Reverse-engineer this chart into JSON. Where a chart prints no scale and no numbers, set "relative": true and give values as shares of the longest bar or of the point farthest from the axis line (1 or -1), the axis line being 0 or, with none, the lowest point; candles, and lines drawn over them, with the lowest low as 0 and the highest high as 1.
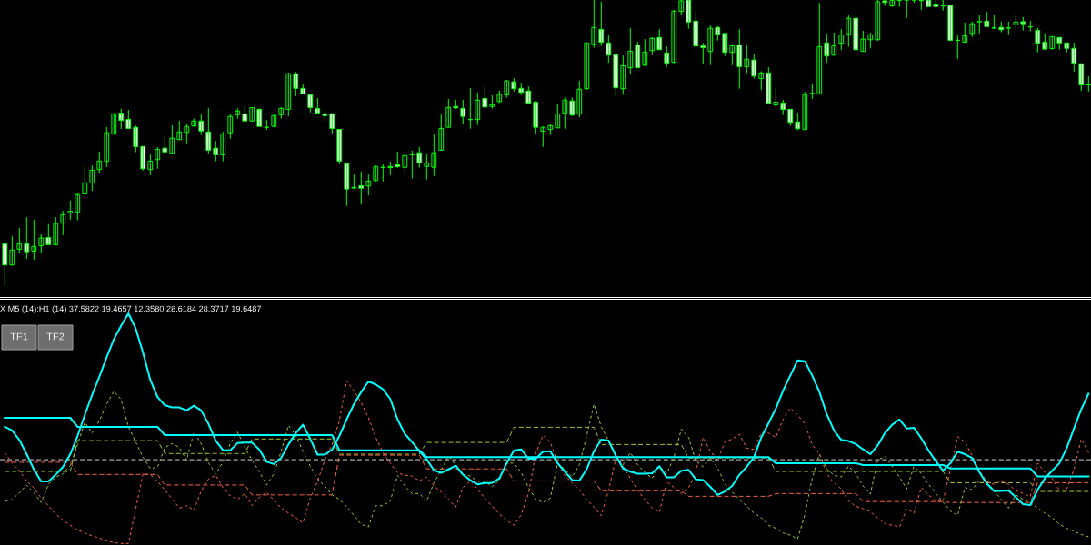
{
  "chart_data": [
    {
      "type": "candlestick",
      "relative": true,
      "color": "#00ff00",
      "categories": [
        null,
        null,
        null,
        null,
        null,
        null,
        null,
        null,
        null,
        null,
        null,
        null,
        null,
        null,
        null,
        null,
        null,
        null,
        null,
        null,
        null,
        null,
        null,
        null,
        null,
        null,
        null,
        null,
        null,
        null,
        null,
        null,
        null,
        null,
        null,
        null,
        null,
        null,
        null,
        null,
        null,
        null,
        null,
        null,
        null,
        null,
        null,
        null,
        null,
        null,
        null,
        null,
        null,
        null,
        null,
        null,
        null,
        null,
        null,
        null,
        null,
        null,
        null,
        null,
        null,
        null,
        null,
        null,
        null,
        null,
        null,
        null,
        null,
        null,
        null,
        null,
        null,
        null,
        null,
        null,
        null,
        null,
        null,
        null,
        null,
        null,
        null,
        null,
        null,
        null,
        null,
        null,
        null,
        null,
        null,
        null,
        null,
        null,
        null,
        null,
        null,
        null,
        null,
        null,
        null,
        null,
        null,
        null,
        null,
        null,
        null,
        null,
        null,
        null,
        null,
        null,
        null,
        null,
        null,
        null,
        null,
        null,
        null,
        null,
        null,
        null,
        null,
        null,
        null,
        null,
        null,
        null,
        null,
        null,
        null,
        null,
        null,
        null,
        null,
        null,
        null,
        null,
        null,
        null,
        null,
        null,
        null,
        null,
        null,
        null
      ],
      "ohlc": [
        [
          0.148,
          0.156,
          0,
          0.074
        ],
        [
          0.074,
          0.175,
          0.074,
          0.126
        ],
        [
          0.129,
          0.203,
          0.114,
          0.148
        ],
        [
          0.148,
          0.241,
          0.095,
          0.12
        ],
        [
          0.122,
          0.232,
          0.092,
          0.139
        ],
        [
          0.141,
          0.181,
          0.114,
          0.168
        ],
        [
          0.17,
          0.216,
          0.145,
          0.145
        ],
        [
          0.144,
          0.241,
          0.144,
          0.219
        ],
        [
          0.22,
          0.263,
          0.178,
          0.25
        ],
        [
          0.256,
          0.298,
          0.232,
          0.262
        ],
        [
          0.258,
          0.326,
          0.23,
          0.32
        ],
        [
          0.322,
          0.416,
          0.322,
          0.361
        ],
        [
          0.36,
          0.422,
          0.333,
          0.405
        ],
        [
          0.407,
          0.47,
          0.395,
          0.437
        ],
        [
          0.436,
          0.556,
          0.416,
          0.536
        ],
        [
          0.531,
          0.605,
          0.531,
          0.602
        ],
        [
          0.605,
          0.619,
          0.549,
          0.579
        ],
        [
          0.583,
          0.616,
          0.551,
          0.551
        ],
        [
          0.555,
          0.561,
          0.468,
          0.487
        ],
        [
          0.488,
          0.488,
          0.404,
          0.41
        ],
        [
          0.407,
          0.463,
          0.388,
          0.437
        ],
        [
          0.442,
          0.486,
          0.41,
          0.478
        ],
        [
          0.482,
          0.527,
          0.458,
          0.469
        ],
        [
          0.464,
          0.562,
          0.464,
          0.517
        ],
        [
          0.512,
          0.578,
          0.512,
          0.539
        ],
        [
          0.537,
          0.565,
          0.499,
          0.558
        ],
        [
          0.56,
          0.586,
          0.556,
          0.577
        ],
        [
          0.577,
          0.603,
          0.528,
          0.542
        ],
        [
          0.539,
          0.622,
          0.464,
          0.475
        ],
        [
          0.482,
          0.507,
          0.436,
          0.459
        ],
        [
          0.459,
          0.539,
          0.436,
          0.532
        ],
        [
          0.536,
          0.603,
          0.515,
          0.593
        ],
        [
          0.599,
          0.621,
          0.585,
          0.612
        ],
        [
          0.602,
          0.629,
          0.574,
          0.577
        ],
        [
          0.577,
          0.624,
          0.577,
          0.624
        ],
        [
          0.618,
          0.621,
          0.558,
          0.558
        ],
        [
          0.555,
          0.581,
          0.546,
          0.555
        ],
        [
          0.558,
          0.602,
          0.555,
          0.596
        ],
        [
          0.599,
          0.626,
          0.585,
          0.621
        ],
        [
          0.618,
          0.746,
          0.594,
          0.742
        ],
        [
          0.742,
          0.749,
          0.663,
          0.691
        ],
        [
          0.691,
          0.705,
          0.672,
          0.672
        ],
        [
          0.669,
          0.672,
          0.607,
          0.624
        ],
        [
          0.621,
          0.657,
          0.601,
          0.605
        ],
        [
          0.602,
          0.609,
          0.576,
          0.596
        ],
        [
          0.602,
          0.605,
          0.53,
          0.551
        ],
        [
          0.548,
          0.548,
          0.426,
          0.437
        ],
        [
          0.428,
          0.428,
          0.28,
          0.339
        ],
        [
          0.345,
          0.39,
          0.339,
          0.343
        ],
        [
          0.351,
          0.4,
          0.286,
          0.342
        ],
        [
          0.35,
          0.39,
          0.317,
          0.367
        ],
        [
          0.369,
          0.421,
          0.366,
          0.418
        ],
        [
          0.415,
          0.425,
          0.366,
          0.415
        ],
        [
          0.418,
          0.435,
          0.388,
          0.414
        ],
        [
          0.424,
          0.47,
          0.413,
          0.418
        ],
        [
          0.415,
          0.466,
          0.398,
          0.456
        ],
        [
          0.459,
          0.473,
          0.376,
          0.459
        ],
        [
          0.466,
          0.486,
          0.414,
          0.431
        ],
        [
          0.418,
          0.463,
          0.372,
          0.431
        ],
        [
          0.415,
          0.533,
          0.385,
          0.466
        ],
        [
          0.475,
          0.603,
          0.475,
          0.551
        ],
        [
          0.555,
          0.654,
          0.555,
          0.624
        ],
        [
          0.628,
          0.651,
          0.619,
          0.623
        ],
        [
          0.621,
          0.651,
          0.568,
          0.593
        ],
        [
          0.582,
          0.692,
          0.55,
          0.582
        ],
        [
          0.582,
          0.676,
          0.563,
          0.65
        ],
        [
          0.656,
          0.698,
          0.623,
          0.626
        ],
        [
          0.628,
          0.667,
          0.62,
          0.634
        ],
        [
          0.645,
          0.683,
          0.64,
          0.67
        ],
        [
          0.668,
          0.721,
          0.658,
          0.717
        ],
        [
          0.714,
          0.727,
          0.68,
          0.69
        ],
        [
          0.691,
          0.711,
          0.668,
          0.677
        ],
        [
          0.682,
          0.698,
          0.636,
          0.639
        ],
        [
          0.643,
          0.647,
          0.533,
          0.555
        ],
        [
          0.541,
          0.558,
          0.486,
          0.555
        ],
        [
          0.547,
          0.567,
          0.528,
          0.561
        ],
        [
          0.553,
          0.637,
          0.553,
          0.602
        ],
        [
          0.604,
          0.659,
          0.55,
          0.65
        ],
        [
          0.647,
          0.659,
          0.594,
          0.598
        ],
        [
          0.601,
          0.717,
          0.59,
          0.688
        ],
        [
          0.69,
          0.85,
          0.686,
          0.85
        ],
        [
          0.845,
          1,
          0.833,
          0.904
        ],
        [
          0.897,
          0.994,
          0.839,
          0.852
        ],
        [
          0.85,
          0.876,
          0.781,
          0.807
        ],
        [
          0.809,
          0.812,
          0.663,
          0.693
        ],
        [
          0.69,
          0.806,
          0.669,
          0.77
        ],
        [
          0.763,
          0.902,
          0.741,
          0.821
        ],
        [
          0.843,
          0.854,
          0.763,
          0.763
        ],
        [
          0.772,
          0.863,
          0.769,
          0.818
        ],
        [
          0.823,
          0.87,
          0.807,
          0.866
        ],
        [
          0.869,
          0.898,
          0.826,
          0.826
        ],
        [
          0.815,
          0.838,
          0.766,
          0.779
        ],
        [
          0.782,
          0.965,
          0.779,
          0.961
        ],
        [
          0.96,
          1,
          0.947,
          0.997
        ],
        [
          1,
          1,
          0.899,
          0.923
        ],
        [
          0.926,
          0.961,
          0.836,
          0.839
        ],
        [
          0.84,
          0.85,
          0.776,
          0.833
        ],
        [
          0.82,
          0.914,
          0.772,
          0.901
        ],
        [
          0.904,
          0.908,
          0.858,
          0.88
        ],
        [
          0.883,
          0.886,
          0.804,
          0.817
        ],
        [
          0.817,
          0.847,
          0.772,
          0.84
        ],
        [
          0.843,
          0.898,
          0.69,
          0.767
        ],
        [
          0.767,
          0.841,
          0.744,
          0.793
        ],
        [
          0.79,
          0.81,
          0.725,
          0.734
        ],
        [
          0.725,
          0.751,
          0.686,
          0.745
        ],
        [
          0.745,
          0.765,
          0.639,
          0.639
        ],
        [
          0.633,
          0.694,
          0.626,
          0.643
        ],
        [
          0.64,
          0.651,
          0.598,
          0.617
        ],
        [
          0.618,
          0.618,
          0.56,
          0.572
        ],
        [
          0.574,
          0.606,
          0.545,
          0.55
        ],
        [
          0.547,
          0.679,
          0.547,
          0.669
        ],
        [
          0.673,
          0.705,
          0.654,
          0.673
        ],
        [
          0.671,
          0.99,
          0.671,
          0.837
        ],
        [
          0.85,
          0.883,
          0.781,
          0.804
        ],
        [
          0.807,
          0.886,
          0.807,
          0.84
        ],
        [
          0.849,
          0.898,
          0.825,
          0.878
        ],
        [
          0.88,
          0.949,
          0.836,
          0.936
        ],
        [
          0.936,
          0.936,
          0.826,
          0.826
        ],
        [
          0.82,
          0.892,
          0.82,
          0.863
        ],
        [
          0.861,
          0.886,
          0.831,
          0.878
        ],
        [
          0.861,
          1,
          0.858,
          0.994
        ],
        [
          0.997,
          1,
          0.979,
          0.991
        ],
        [
          0.979,
          1,
          0.976,
          0.998
        ],
        [
          0.999,
          1,
          0.976,
          0.999
        ],
        [
          1,
          1,
          0.937,
          1
        ],
        [
          1,
          1,
          0.99,
          1
        ],
        [
          0.998,
          1,
          0.965,
          0.998
        ],
        [
          1,
          1,
          0.977,
          0.977
        ],
        [
          0.986,
          1,
          0.975,
          0.977
        ],
        [
          0.979,
          1,
          0.963,
          0.979
        ],
        [
          0.981,
          0.984,
          0.859,
          0.859
        ],
        [
          0.859,
          0.876,
          0.794,
          0.859
        ],
        [
          0.852,
          0.921,
          0.852,
          0.875
        ],
        [
          0.883,
          0.924,
          0.871,
          0.917
        ],
        [
          0.924,
          0.949,
          0.883,
          0.924
        ],
        [
          0.926,
          0.959,
          0.907,
          0.907
        ],
        [
          0.902,
          0.949,
          0.899,
          0.902
        ],
        [
          0.904,
          0.924,
          0.887,
          0.896
        ],
        [
          0.902,
          0.924,
          0.88,
          0.902
        ],
        [
          0.913,
          0.946,
          0.898,
          0.923
        ],
        [
          0.924,
          0.94,
          0.893,
          0.917
        ],
        [
          0.906,
          0.927,
          0.89,
          0.906
        ],
        [
          0.894,
          0.902,
          0.817,
          0.849
        ],
        [
          0.853,
          0.883,
          0.828,
          0.828
        ],
        [
          0.83,
          0.872,
          0.826,
          0.872
        ],
        [
          0.869,
          0.869,
          0.826,
          0.85
        ],
        [
          0.85,
          0.851,
          0.817,
          0.831
        ],
        [
          0.831,
          0.851,
          0.75,
          0.779
        ],
        [
          0.777,
          0.777,
          0.683,
          0.703
        ],
        [
          0.703,
          0.733,
          0.68,
          0.703
        ]
      ]
    },
    {
      "type": "line",
      "relative": true,
      "title": "X M5 (14):H1 (14) 37.5822 19.4657 12.3580 28.6184 28.3717 19.6487",
      "annotations": [
        "TF1",
        "TF2"
      ],
      "ref_lines": [
        {
          "axis": "y",
          "value": 0.364,
          "color": "#d3d3d3",
          "line_style": "dashed"
        }
      ],
      "categories": [
        null,
        null,
        null,
        null,
        null,
        null,
        null,
        null,
        null,
        null,
        null,
        null,
        null,
        null,
        null,
        null,
        null,
        null,
        null,
        null,
        null,
        null,
        null,
        null,
        null,
        null,
        null,
        null,
        null,
        null,
        null,
        null,
        null,
        null,
        null,
        null,
        null,
        null,
        null,
        null,
        null,
        null,
        null,
        null,
        null,
        null,
        null,
        null,
        null,
        null,
        null,
        null,
        null,
        null,
        null,
        null,
        null,
        null,
        null,
        null,
        null,
        null,
        null,
        null,
        null,
        null,
        null,
        null,
        null,
        null,
        null,
        null,
        null,
        null,
        null,
        null,
        null,
        null,
        null,
        null,
        null,
        null,
        null,
        null,
        null,
        null,
        null,
        null,
        null,
        null,
        null,
        null,
        null,
        null,
        null,
        null,
        null,
        null,
        null,
        null,
        null,
        null,
        null,
        null,
        null,
        null,
        null,
        null,
        null,
        null,
        null,
        null,
        null,
        null,
        null,
        null,
        null,
        null,
        null,
        null,
        null,
        null,
        null,
        null,
        null,
        null,
        null,
        null,
        null,
        null,
        null,
        null,
        null,
        null,
        null,
        null,
        null,
        null,
        null,
        null,
        null,
        null,
        null,
        null,
        null,
        null,
        null,
        null,
        null,
        null
      ],
      "series": [
        {
          "color": "#9acd32",
          "line_style": "dashed",
          "values": [
            0.313,
            0.313,
            0.313,
            0.313,
            0.313,
            0.313,
            0.313,
            0.313,
            0.313,
            0.313,
            0.447,
            0.447,
            0.447,
            0.447,
            0.447,
            0.447,
            0.447,
            0.447,
            0.447,
            0.447,
            0.447,
            0.447,
            0.391,
            0.391,
            0.391,
            0.391,
            0.391,
            0.391,
            0.391,
            0.391,
            0.391,
            0.391,
            0.391,
            0.391,
            0.454,
            0.454,
            0.454,
            0.454,
            0.454,
            0.454,
            0.454,
            0.454,
            0.454,
            0.454,
            0.454,
            0.454,
            0.388,
            0.388,
            0.388,
            0.388,
            0.388,
            0.388,
            0.388,
            0.388,
            0.388,
            0.388,
            0.388,
            0.388,
            0.439,
            0.439,
            0.439,
            0.439,
            0.439,
            0.439,
            0.439,
            0.439,
            0.439,
            0.439,
            0.439,
            0.439,
            0.505,
            0.505,
            0.505,
            0.505,
            0.505,
            0.505,
            0.505,
            0.505,
            0.505,
            0.505,
            0.505,
            0.505,
            0.43,
            0.43,
            0.43,
            0.43,
            0.43,
            0.43,
            0.43,
            0.43,
            0.43,
            0.43,
            0.43,
            0.43,
            0.372,
            0.372,
            0.372,
            0.372,
            0.372,
            0.372,
            0.372,
            0.372,
            0.372,
            0.372,
            0.372,
            0.372,
            0.313,
            0.313,
            0.313,
            0.313,
            0.313,
            0.313,
            0.313,
            0.313,
            0.313,
            0.313,
            0.313,
            0.313,
            0.313,
            0.313,
            0.313,
            0.313,
            0.313,
            0.313,
            0.313,
            0.313,
            0.313,
            0.313,
            0.313,
            0.313,
            0.264,
            0.264,
            0.264,
            0.264,
            0.264,
            0.264,
            0.264,
            0.264,
            0.264,
            0.264,
            0.264,
            0.264,
            0.226,
            0.226,
            0.226,
            0.226,
            0.226,
            0.226,
            0.226,
            0.226
          ]
        },
        {
          "color": "#ff6347",
          "line_style": "dashed",
          "values": [
            0.353,
            0.353,
            0.353,
            0.353,
            0.353,
            0.353,
            0.353,
            0.353,
            0.353,
            0.353,
            0.3,
            0.3,
            0.3,
            0.3,
            0.3,
            0.3,
            0.3,
            0.3,
            0.3,
            0.3,
            0.3,
            0.3,
            0.254,
            0.254,
            0.254,
            0.254,
            0.254,
            0.254,
            0.254,
            0.254,
            0.254,
            0.254,
            0.254,
            0.254,
            0.211,
            0.211,
            0.211,
            0.211,
            0.211,
            0.211,
            0.211,
            0.211,
            0.211,
            0.211,
            0.211,
            0.211,
            0.384,
            0.384,
            0.384,
            0.384,
            0.384,
            0.384,
            0.384,
            0.384,
            0.384,
            0.384,
            0.384,
            0.384,
            0.324,
            0.324,
            0.324,
            0.324,
            0.324,
            0.324,
            0.324,
            0.324,
            0.324,
            0.324,
            0.324,
            0.324,
            0.272,
            0.272,
            0.272,
            0.272,
            0.272,
            0.272,
            0.272,
            0.272,
            0.272,
            0.272,
            0.272,
            0.272,
            0.229,
            0.229,
            0.229,
            0.229,
            0.229,
            0.229,
            0.229,
            0.229,
            0.229,
            0.229,
            0.229,
            0.229,
            0.205,
            0.205,
            0.205,
            0.205,
            0.205,
            0.205,
            0.205,
            0.205,
            0.205,
            0.205,
            0.205,
            0.205,
            0.217,
            0.217,
            0.217,
            0.217,
            0.217,
            0.217,
            0.217,
            0.217,
            0.217,
            0.217,
            0.217,
            0.217,
            0.182,
            0.182,
            0.182,
            0.182,
            0.182,
            0.182,
            0.182,
            0.182,
            0.182,
            0.182,
            0.182,
            0.182,
            0.178,
            0.178,
            0.178,
            0.178,
            0.178,
            0.178,
            0.178,
            0.178,
            0.178,
            0.178,
            0.178,
            0.178,
            0.264,
            0.264,
            0.264,
            0.264,
            0.264,
            0.264,
            0.264,
            0.264
          ]
        },
        {
          "color": "#9acd32",
          "line_style": "dotted",
          "values": [
            0.183,
            0.191,
            0.22,
            0.254,
            0.22,
            0.178,
            0.257,
            0.289,
            0.303,
            0.338,
            0.43,
            0.526,
            0.48,
            0.533,
            0.605,
            0.662,
            0.625,
            0.507,
            0.441,
            0.375,
            0.325,
            0.332,
            0.417,
            0.434,
            0.417,
            0.362,
            0.484,
            0.434,
            0.351,
            0.303,
            0.355,
            0.434,
            0.484,
            0.417,
            0.362,
            0.312,
            0.254,
            0.303,
            0.401,
            0.513,
            0.47,
            0.401,
            0.336,
            0.28,
            0.25,
            0.211,
            0.191,
            0.161,
            0.122,
            0.083,
            0.072,
            0.164,
            0.164,
            0.184,
            0.296,
            0.25,
            0.217,
            0.217,
            0.184,
            0.263,
            0.32,
            0.379,
            0.342,
            0.3,
            0.293,
            0.27,
            0.27,
            0.246,
            0.276,
            0.349,
            0.349,
            0.309,
            0.243,
            0.193,
            0.178,
            0.197,
            0.349,
            0.322,
            0.289,
            0.342,
            0.467,
            0.605,
            0.507,
            0.447,
            0.378,
            0.342,
            0.395,
            0.342,
            0.309,
            0.283,
            0.336,
            0.303,
            0.375,
            0.497,
            0.461,
            0.359,
            0.333,
            0.372,
            0.329,
            0.259,
            0.224,
            0.191,
            0.162,
            0.132,
            0.112,
            0.079,
            0.066,
            0.046,
            0.036,
            0.02,
            0.125,
            0.283,
            0.388,
            0.325,
            0.296,
            0.289,
            0.336,
            0.303,
            0.25,
            0.214,
            0.362,
            0.378,
            0.336,
            0.289,
            0.237,
            0.336,
            0.303,
            0.257,
            0.217,
            0.18,
            0.141,
            0.122,
            0.243,
            0.233,
            0.276,
            0.263,
            0.23,
            0.191,
            0.154,
            0.211,
            0.191,
            0.178,
            0.154,
            0.132,
            0.112,
            0.083,
            0.066,
            0.053,
            0.039,
            0.029
          ]
        },
        {
          "color": "#ff6347",
          "line_style": "dotted",
          "values": [
            0.395,
            0.349,
            0.316,
            0.272,
            0.241,
            0.197,
            0.164,
            0.128,
            0.101,
            0.079,
            0.059,
            0.046,
            0.033,
            0.024,
            0.011,
            0.004,
            0,
            0,
            0.151,
            0.303,
            0.299,
            0.27,
            0.233,
            0.193,
            0.154,
            0.164,
            0.145,
            0.228,
            0.28,
            0.296,
            0.243,
            0.207,
            0.191,
            0.217,
            0.164,
            0.201,
            0.222,
            0.188,
            0.154,
            0.132,
            0.112,
            0.089,
            0.197,
            0.27,
            0.362,
            0.43,
            0.533,
            0.707,
            0.664,
            0.612,
            0.546,
            0.461,
            0.395,
            0.349,
            0.307,
            0.296,
            0.293,
            0.272,
            0.289,
            0.25,
            0.224,
            0.193,
            0.158,
            0.243,
            0.272,
            0.237,
            0.197,
            0.161,
            0.128,
            0.101,
            0.079,
            0.125,
            0.217,
            0.391,
            0.47,
            0.441,
            0.349,
            0.296,
            0.263,
            0.233,
            0.191,
            0.158,
            0.121,
            0.23,
            0.368,
            0.336,
            0.283,
            0.23,
            0.191,
            0.154,
            0.136,
            0.27,
            0.243,
            0.217,
            0.241,
            0.307,
            0.461,
            0.401,
            0.362,
            0.441,
            0.454,
            0.474,
            0.414,
            0.408,
            0.48,
            0.48,
            0.461,
            0.539,
            0.588,
            0.559,
            0.52,
            0.43,
            0.388,
            0.303,
            0.263,
            0.237,
            0.184,
            0.162,
            0.151,
            0.138,
            0.112,
            0.086,
            0.079,
            0.072,
            0.151,
            0.132,
            0.243,
            0.211,
            0.184,
            0.184,
            0.322,
            0.464,
            0.441,
            0.382,
            0.316,
            0.27,
            0.257,
            0.27,
            0.257,
            0.23,
            0.217,
            0.204,
            0.349,
            0.309,
            0.283,
            0.23,
            0.237,
            0.322,
            0.454,
            0.395
          ]
        },
        {
          "color": "#00ffff",
          "line_style": "solid",
          "values": [
            0.546,
            0.546,
            0.546,
            0.546,
            0.546,
            0.546,
            0.546,
            0.546,
            0.546,
            0.546,
            0.507,
            0.507,
            0.507,
            0.507,
            0.507,
            0.507,
            0.507,
            0.507,
            0.507,
            0.507,
            0.507,
            0.507,
            0.471,
            0.471,
            0.471,
            0.471,
            0.471,
            0.471,
            0.471,
            0.471,
            0.471,
            0.471,
            0.471,
            0.471,
            0.471,
            0.471,
            0.471,
            0.471,
            0.471,
            0.471,
            0.471,
            0.471,
            0.471,
            0.471,
            0.471,
            0.471,
            0.405,
            0.405,
            0.405,
            0.405,
            0.405,
            0.405,
            0.405,
            0.405,
            0.405,
            0.405,
            0.405,
            0.405,
            0.375,
            0.375,
            0.375,
            0.375,
            0.375,
            0.375,
            0.375,
            0.375,
            0.375,
            0.375,
            0.375,
            0.375,
            0.375,
            0.375,
            0.375,
            0.375,
            0.375,
            0.375,
            0.375,
            0.375,
            0.375,
            0.375,
            0.375,
            0.375,
            0.375,
            0.375,
            0.375,
            0.375,
            0.375,
            0.375,
            0.375,
            0.375,
            0.375,
            0.375,
            0.375,
            0.375,
            0.375,
            0.375,
            0.375,
            0.375,
            0.375,
            0.375,
            0.375,
            0.375,
            0.375,
            0.375,
            0.375,
            0.375,
            0.349,
            0.349,
            0.349,
            0.349,
            0.349,
            0.349,
            0.349,
            0.349,
            0.349,
            0.349,
            0.349,
            0.349,
            0.341,
            0.341,
            0.341,
            0.341,
            0.341,
            0.341,
            0.341,
            0.341,
            0.341,
            0.341,
            0.341,
            0.341,
            0.326,
            0.326,
            0.326,
            0.326,
            0.326,
            0.326,
            0.326,
            0.326,
            0.326,
            0.326,
            0.326,
            0.326,
            0.291,
            0.291,
            0.291,
            0.291,
            0.291,
            0.291,
            0.291,
            0.291
          ]
        },
        {
          "color": "#00ffff",
          "line_style": "solid",
          "values": [
            0.507,
            0.491,
            0.45,
            0.388,
            0.322,
            0.27,
            0.27,
            0.299,
            0.333,
            0.388,
            0.467,
            0.559,
            0.645,
            0.724,
            0.809,
            0.888,
            0.947,
            1,
            0.934,
            0.829,
            0.711,
            0.636,
            0.601,
            0.591,
            0.591,
            0.578,
            0.599,
            0.578,
            0.52,
            0.447,
            0.405,
            0.405,
            0.436,
            0.438,
            0.438,
            0.408,
            0.355,
            0.345,
            0.372,
            0.43,
            0.48,
            0.516,
            0.454,
            0.386,
            0.386,
            0.408,
            0.467,
            0.539,
            0.605,
            0.658,
            0.704,
            0.691,
            0.67,
            0.628,
            0.539,
            0.476,
            0.441,
            0.401,
            0.366,
            0.318,
            0.307,
            0.322,
            0.338,
            0.299,
            0.275,
            0.257,
            0.263,
            0.263,
            0.283,
            0.349,
            0.404,
            0.409,
            0.368,
            0.368,
            0.399,
            0.401,
            0.349,
            0.312,
            0.276,
            0.274,
            0.322,
            0.401,
            0.451,
            0.447,
            0.382,
            0.326,
            0.312,
            0.303,
            0.303,
            0.305,
            0.336,
            0.287,
            0.287,
            0.316,
            0.32,
            0.279,
            0.276,
            0.246,
            0.211,
            0.226,
            0.25,
            0.299,
            0.333,
            0.375,
            0.461,
            0.522,
            0.586,
            0.664,
            0.73,
            0.796,
            0.792,
            0.73,
            0.658,
            0.562,
            0.491,
            0.45,
            0.445,
            0.432,
            0.409,
            0.388,
            0.426,
            0.48,
            0.516,
            0.539,
            0.5,
            0.503,
            0.457,
            0.404,
            0.358,
            0.316,
            0.349,
            0.399,
            0.388,
            0.372,
            0.309,
            0.261,
            0.228,
            0.228,
            0.23,
            0.201,
            0.171,
            0.167,
            0.233,
            0.283,
            0.316,
            0.349,
            0.414,
            0.5,
            0.583,
            0.651
          ]
        }
      ]
    }
  ]
}
